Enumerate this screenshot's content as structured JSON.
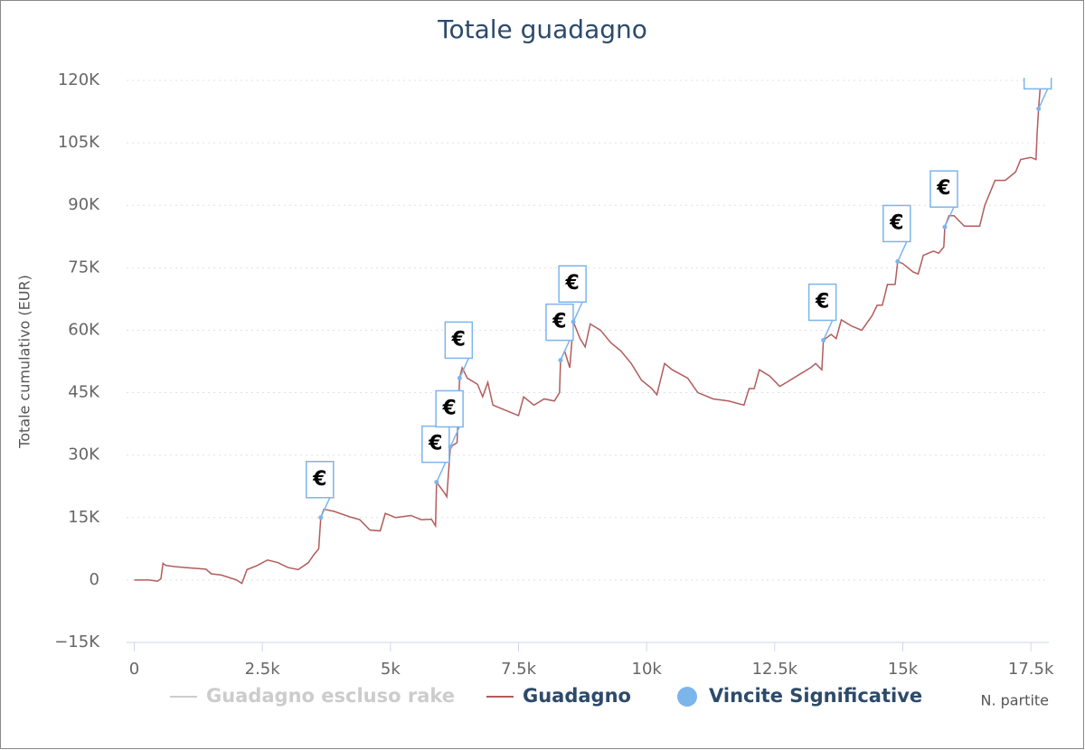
{
  "chart_data": {
    "type": "line",
    "title": "Totale guadagno",
    "x_label": "N. partite",
    "y_label": "Totale cumulativo (EUR)",
    "xlim": [
      -150,
      17850
    ],
    "ylim": [
      -15000,
      120000
    ],
    "xticks": [
      0,
      {
        "value": 2500,
        "label": "2.5k"
      },
      {
        "value": 5000,
        "label": "5k"
      },
      {
        "value": 7500,
        "label": "7.5k"
      },
      {
        "value": 10000,
        "label": "10k"
      },
      {
        "value": 12500,
        "label": "12.5k"
      },
      {
        "value": 15000,
        "label": "15k"
      },
      {
        "value": 17500,
        "label": "17.5k"
      }
    ],
    "yticks": [
      {
        "value": -15000,
        "label": "−15K"
      },
      0,
      {
        "value": 15000,
        "label": "15K"
      },
      {
        "value": 30000,
        "label": "30K"
      },
      {
        "value": 45000,
        "label": "45K"
      },
      {
        "value": 60000,
        "label": "60K"
      },
      {
        "value": 75000,
        "label": "75K"
      },
      {
        "value": 90000,
        "label": "90K"
      },
      {
        "value": 105000,
        "label": "105K"
      },
      {
        "value": 120000,
        "label": "120K"
      }
    ],
    "grid": true,
    "series": [
      {
        "name": "Guadagno escluso rake",
        "color": "#cccccc",
        "visible": false
      },
      {
        "name": "Guadagno",
        "color": "#b25c5c",
        "x": [
          0,
          300,
          450,
          520,
          560,
          620,
          800,
          1000,
          1400,
          1500,
          1700,
          2000,
          2100,
          2200,
          2400,
          2600,
          2800,
          3000,
          3200,
          3400,
          3500,
          3600,
          3640,
          3700,
          3900,
          4200,
          4400,
          4600,
          4800,
          4900,
          5100,
          5400,
          5600,
          5800,
          5880,
          5900,
          6050,
          6100,
          6170,
          6300,
          6350,
          6400,
          6500,
          6700,
          6800,
          6900,
          7000,
          7300,
          7500,
          7600,
          7800,
          8000,
          8200,
          8300,
          8320,
          8400,
          8500,
          8570,
          8700,
          8800,
          8900,
          9100,
          9300,
          9500,
          9700,
          9900,
          10100,
          10200,
          10350,
          10500,
          10800,
          11000,
          11300,
          11600,
          11900,
          12000,
          12100,
          12200,
          12400,
          12600,
          12800,
          13000,
          13200,
          13300,
          13420,
          13450,
          13600,
          13700,
          13800,
          14000,
          14200,
          14400,
          14500,
          14600,
          14700,
          14850,
          14900,
          15000,
          15200,
          15300,
          15400,
          15600,
          15700,
          15800,
          15820,
          15900,
          16000,
          16200,
          16500,
          16600,
          16800,
          17000,
          17200,
          17300,
          17500,
          17600,
          17620,
          17650,
          17680
        ],
        "values": [
          0,
          0,
          -300,
          300,
          4000,
          3500,
          3200,
          3000,
          2600,
          1500,
          1200,
          0,
          -800,
          2500,
          3500,
          4800,
          4200,
          3000,
          2500,
          4200,
          6000,
          7500,
          15000,
          17000,
          16500,
          15200,
          14500,
          12000,
          11800,
          16000,
          15000,
          15500,
          14500,
          14600,
          13000,
          23500,
          21000,
          20000,
          32000,
          33000,
          48500,
          51000,
          48500,
          47000,
          44000,
          47500,
          42000,
          40500,
          39500,
          44000,
          42000,
          43500,
          43000,
          45000,
          52800,
          55000,
          51000,
          62000,
          58000,
          56000,
          61500,
          60000,
          57000,
          55000,
          52000,
          48000,
          46000,
          44500,
          52000,
          50500,
          48500,
          45000,
          43500,
          43000,
          42000,
          46000,
          46000,
          50500,
          49000,
          46500,
          48000,
          49500,
          51000,
          52000,
          50500,
          57600,
          59000,
          58000,
          62500,
          61000,
          60000,
          63500,
          66000,
          66000,
          71000,
          71000,
          76500,
          76000,
          74000,
          73500,
          78000,
          79000,
          78500,
          80000,
          84800,
          87500,
          87500,
          85000,
          85000,
          90000,
          96000,
          96000,
          98000,
          101000,
          101500,
          101000,
          107000,
          113200,
          118000
        ]
      },
      {
        "name": "Vincite Significative",
        "color": "#7cb5ec",
        "flag_text": "€",
        "x": [
          3640,
          5900,
          6170,
          6350,
          8320,
          8570,
          13450,
          14900,
          15820,
          17650
        ],
        "values": [
          15000,
          23500,
          32000,
          48500,
          52800,
          62000,
          57600,
          76500,
          84800,
          113200
        ]
      }
    ]
  }
}
